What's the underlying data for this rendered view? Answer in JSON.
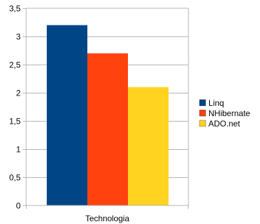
{
  "chart_data": {
    "type": "bar",
    "categories": [
      "Technologia"
    ],
    "series": [
      {
        "name": "Linq",
        "values": [
          3.2
        ],
        "color": "#004586"
      },
      {
        "name": "NHibernate",
        "values": [
          2.7
        ],
        "color": "#ff420e"
      },
      {
        "name": "ADO.net",
        "values": [
          2.1
        ],
        "color": "#ffd320"
      }
    ],
    "title": "",
    "xlabel": "",
    "ylabel": "",
    "ylim": [
      0,
      3.5
    ],
    "yticks": [
      {
        "value": 0,
        "label": "0"
      },
      {
        "value": 0.5,
        "label": "0,5"
      },
      {
        "value": 1,
        "label": "1"
      },
      {
        "value": 1.5,
        "label": "1,5"
      },
      {
        "value": 2,
        "label": "2"
      },
      {
        "value": 2.5,
        "label": "2,5"
      },
      {
        "value": 3,
        "label": "3"
      },
      {
        "value": 3.5,
        "label": "3,5"
      }
    ],
    "grid": true,
    "legend": "right"
  }
}
